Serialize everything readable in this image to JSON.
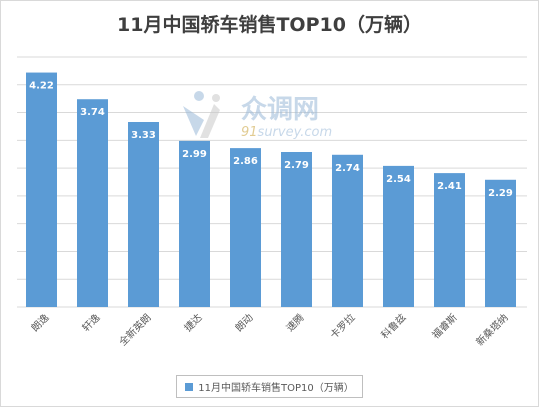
{
  "chart_data": {
    "type": "bar",
    "title": "11月中国轿车销售TOP10（万辆）",
    "categories": [
      "朗逸",
      "轩逸",
      "全新英朗",
      "捷达",
      "朗动",
      "速腾",
      "卡罗拉",
      "科鲁兹",
      "福睿斯",
      "新桑塔纳"
    ],
    "series": [
      {
        "name": "11月中国轿车销售TOP10（万辆）",
        "values": [
          4.22,
          3.74,
          3.33,
          2.99,
          2.86,
          2.79,
          2.74,
          2.54,
          2.41,
          2.29
        ],
        "color": "#5b9bd5"
      }
    ],
    "value_labels": [
      "4.22",
      "3.74",
      "3.33",
      "2.99",
      "2.86",
      "2.79",
      "2.74",
      "2.54",
      "2.41",
      "2.29"
    ],
    "ylim": [
      0,
      4.5
    ],
    "grid": true,
    "legend_position": "bottom",
    "xlabel": "",
    "ylabel": ""
  },
  "watermark": {
    "brand_text": "众调网",
    "url_prefix": "91",
    "url_rest": "survey.com",
    "icon": "survey-logo-icon"
  },
  "colors": {
    "bar": "#5b9bd5",
    "grid": "#d9d9d9",
    "label": "#ffffff",
    "axis_text": "#595959"
  }
}
